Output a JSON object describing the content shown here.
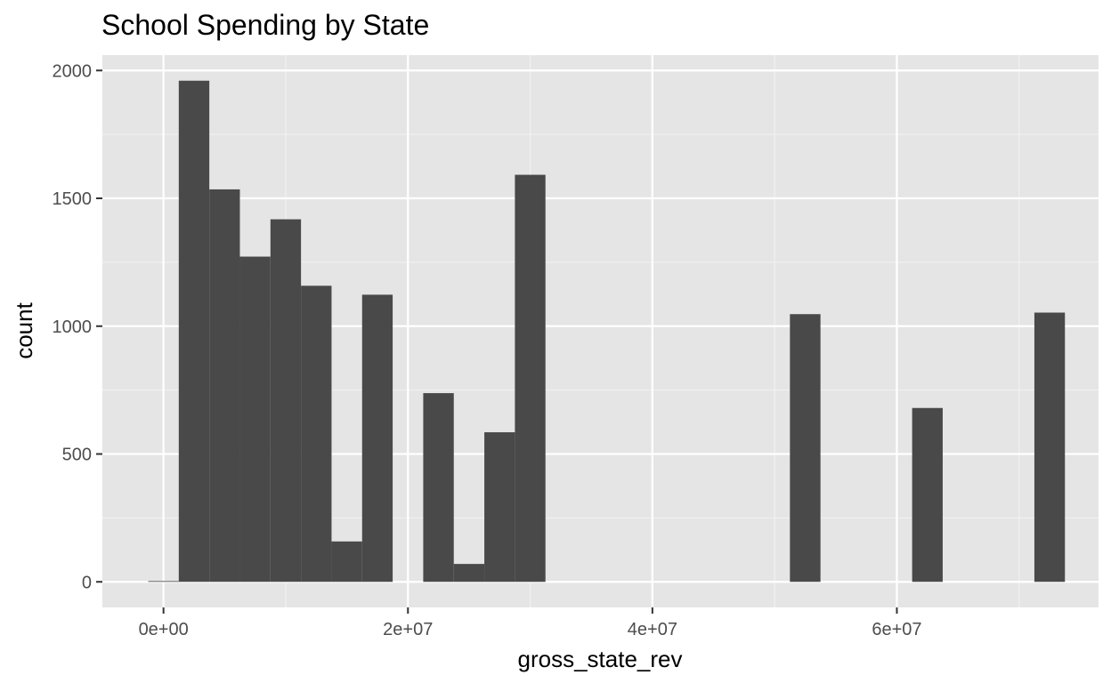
{
  "chart_data": {
    "type": "bar",
    "subtype": "histogram",
    "title": "School Spending by State",
    "xlabel": "gross_state_rev",
    "ylabel": "count",
    "bin_width": 2500000,
    "bins": [
      {
        "x0": -1250000,
        "x1": 1250000,
        "count": 3
      },
      {
        "x0": 1250000,
        "x1": 3750000,
        "count": 1960
      },
      {
        "x0": 3750000,
        "x1": 6250000,
        "count": 1535
      },
      {
        "x0": 6250000,
        "x1": 8750000,
        "count": 1272
      },
      {
        "x0": 8750000,
        "x1": 11250000,
        "count": 1418
      },
      {
        "x0": 11250000,
        "x1": 13750000,
        "count": 1158
      },
      {
        "x0": 13750000,
        "x1": 16250000,
        "count": 158
      },
      {
        "x0": 16250000,
        "x1": 18750000,
        "count": 1123
      },
      {
        "x0": 21250000,
        "x1": 23750000,
        "count": 738
      },
      {
        "x0": 23750000,
        "x1": 26250000,
        "count": 70
      },
      {
        "x0": 26250000,
        "x1": 28750000,
        "count": 585
      },
      {
        "x0": 28750000,
        "x1": 31250000,
        "count": 1592
      },
      {
        "x0": 51250000,
        "x1": 53750000,
        "count": 1047
      },
      {
        "x0": 61250000,
        "x1": 63750000,
        "count": 680
      },
      {
        "x0": 71250000,
        "x1": 73750000,
        "count": 1053
      }
    ],
    "xlim": [
      -5000000,
      76500000
    ],
    "ylim": [
      -100,
      2060
    ],
    "x_ticks": [
      {
        "value": 0,
        "label": "0e+00"
      },
      {
        "value": 20000000,
        "label": "2e+07"
      },
      {
        "value": 40000000,
        "label": "4e+07"
      },
      {
        "value": 60000000,
        "label": "6e+07"
      }
    ],
    "x_minor_ticks": [
      10000000,
      30000000,
      50000000,
      70000000
    ],
    "y_ticks": [
      {
        "value": 0,
        "label": "0"
      },
      {
        "value": 500,
        "label": "500"
      },
      {
        "value": 1000,
        "label": "1000"
      },
      {
        "value": 1500,
        "label": "1500"
      },
      {
        "value": 2000,
        "label": "2000"
      }
    ],
    "y_minor_ticks": [
      250,
      750,
      1250,
      1750
    ],
    "grid": true,
    "legend": "none"
  },
  "colors": {
    "panel_background": "#e5e5e5",
    "grid_major": "#ffffff",
    "grid_minor": "#f2f2f2",
    "bar_fill": "#494949",
    "tick_mark": "#333333",
    "tick_text": "#4d4d4d",
    "text": "#000000"
  }
}
